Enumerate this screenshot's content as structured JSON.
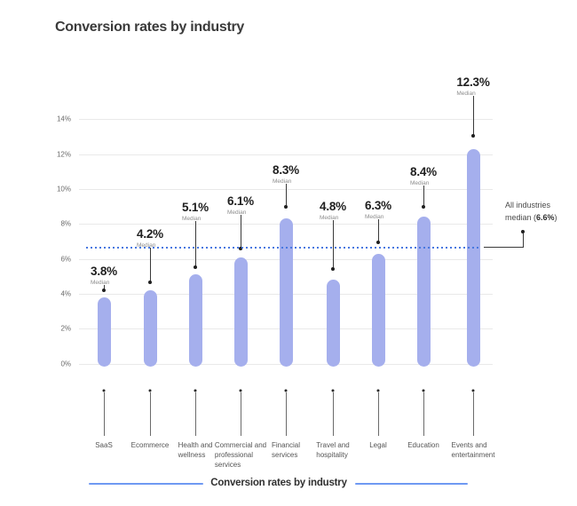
{
  "title": "Conversion rates by industry",
  "chart_data": {
    "type": "bar",
    "title": "Conversion rates by industry",
    "categories": [
      "SaaS",
      "Ecommerce",
      "Health and wellness",
      "Commercial and professional services",
      "Financial services",
      "Travel and hospitality",
      "Legal",
      "Education",
      "Events and entertainment"
    ],
    "category_lines": [
      [
        "SaaS"
      ],
      [
        "Ecommerce"
      ],
      [
        "Health and",
        "wellness"
      ],
      [
        "Commercial and",
        "professional",
        "services"
      ],
      [
        "Financial",
        "services"
      ],
      [
        "Travel and",
        "hospitality"
      ],
      [
        "Legal"
      ],
      [
        "Education"
      ],
      [
        "Events and",
        "entertainment"
      ]
    ],
    "series": [
      {
        "name": "Conversion rates by industry",
        "values": [
          3.8,
          4.2,
          5.1,
          6.1,
          8.3,
          4.8,
          6.3,
          8.4,
          12.3
        ]
      }
    ],
    "point_labels": [
      "3.8%",
      "4.2%",
      "5.1%",
      "6.1%",
      "8.3%",
      "4.8%",
      "6.3%",
      "8.4%",
      "12.3%"
    ],
    "point_sublabel": "Median",
    "xlabel": "",
    "ylabel": "",
    "ylim": [
      0,
      14
    ],
    "grid": true,
    "y_axis": {
      "ticks": [
        {
          "label": "0%",
          "value": 0
        },
        {
          "label": "2%",
          "value": 2
        },
        {
          "label": "4%",
          "value": 4
        },
        {
          "label": "6%",
          "value": 6
        },
        {
          "label": "8%",
          "value": 8
        },
        {
          "label": "10%",
          "value": 10
        },
        {
          "label": "12%",
          "value": 12
        },
        {
          "label": "14%",
          "value": 14
        }
      ]
    },
    "reference_line": {
      "value": 6.6,
      "label_line1": "All industries",
      "label_line2_parts": [
        "median (",
        "6.6%",
        ")"
      ]
    },
    "legend": {
      "label": "Conversion rates by industry",
      "position": "bottom"
    },
    "colors": {
      "bar": "#a5afed",
      "reference": "#4878e0",
      "legend_line": "#6f99f2",
      "grid": "#e9e9e9",
      "value_label": "#1f1f1f",
      "sublabel": "#8d8d8d",
      "axis_text": "#6b6b6b"
    }
  }
}
